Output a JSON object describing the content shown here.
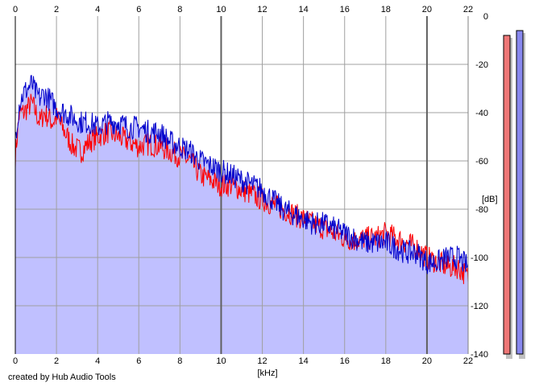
{
  "chart_data": {
    "type": "area",
    "x_unit_label": "[kHz]",
    "y_unit_label": "[dB]",
    "xlim": [
      0,
      22
    ],
    "ylim": [
      -140,
      0
    ],
    "x_ticks": [
      0,
      2,
      4,
      6,
      8,
      10,
      12,
      14,
      16,
      18,
      20,
      22
    ],
    "y_ticks": [
      0,
      -20,
      -40,
      -60,
      -80,
      -100,
      -120,
      -140
    ],
    "grid": true,
    "series": [
      {
        "color": "#ff0000",
        "x": [
          0,
          0.2,
          0.4,
          0.6,
          0.8,
          1,
          1.2,
          1.4,
          1.6,
          1.8,
          2,
          2.4,
          2.8,
          3.2,
          3.6,
          4,
          4.5,
          5,
          5.5,
          6,
          6.5,
          7,
          7.5,
          8,
          8.5,
          9,
          9.5,
          10,
          10.5,
          11,
          11.5,
          12,
          12.5,
          13,
          13.5,
          14,
          14.5,
          15,
          15.5,
          16,
          16.5,
          17,
          17.5,
          18,
          18.5,
          19,
          19.5,
          20,
          20.5,
          21,
          21.5,
          22
        ],
        "values": [
          -58,
          -40,
          -40,
          -38,
          -36,
          -40,
          -44,
          -40,
          -42,
          -44,
          -42,
          -48,
          -54,
          -56,
          -52,
          -50,
          -48,
          -50,
          -52,
          -54,
          -53,
          -54,
          -56,
          -58,
          -60,
          -66,
          -68,
          -70,
          -70,
          -72,
          -74,
          -76,
          -78,
          -80,
          -82,
          -84,
          -86,
          -88,
          -90,
          -92,
          -93,
          -92,
          -92,
          -90,
          -92,
          -94,
          -96,
          -100,
          -102,
          -104,
          -104,
          -108
        ]
      },
      {
        "color": "#0000cc",
        "x": [
          0,
          0.2,
          0.4,
          0.6,
          0.8,
          1,
          1.2,
          1.4,
          1.6,
          1.8,
          2,
          2.4,
          2.8,
          3.2,
          3.6,
          4,
          4.5,
          5,
          5.5,
          6,
          6.5,
          7,
          7.5,
          8,
          8.5,
          9,
          9.5,
          10,
          10.5,
          11,
          11.5,
          12,
          12.5,
          13,
          13.5,
          14,
          14.5,
          15,
          15.5,
          16,
          16.5,
          17,
          17.5,
          18,
          18.5,
          19,
          19.5,
          20,
          20.5,
          21,
          21.5,
          22
        ],
        "values": [
          -50,
          -36,
          -32,
          -30,
          -28,
          -32,
          -34,
          -32,
          -34,
          -36,
          -38,
          -40,
          -42,
          -44,
          -44,
          -46,
          -44,
          -44,
          -46,
          -46,
          -48,
          -48,
          -52,
          -54,
          -56,
          -60,
          -62,
          -64,
          -66,
          -68,
          -70,
          -72,
          -76,
          -80,
          -82,
          -84,
          -86,
          -86,
          -88,
          -90,
          -92,
          -94,
          -94,
          -94,
          -96,
          -98,
          -98,
          -102,
          -102,
          -100,
          -100,
          -104
        ]
      }
    ],
    "levels": [
      {
        "color": "#ee7777",
        "value": -8
      },
      {
        "color": "#8888ee",
        "value": -6
      }
    ]
  },
  "footer": {
    "credit": "created by Hub Audio Tools"
  }
}
